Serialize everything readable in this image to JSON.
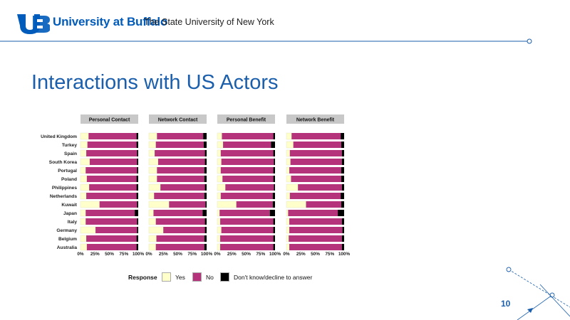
{
  "header": {
    "university": "University at Buffalo",
    "subtitle": "The State University of New York",
    "colors": {
      "brand_blue": "#005bbb"
    }
  },
  "slide": {
    "title": "Interactions with US Actors",
    "page_number": "10"
  },
  "legend": {
    "title": "Response",
    "items": [
      {
        "label": "Yes",
        "color": "#ffffcc"
      },
      {
        "label": "No",
        "color": "#b5337a"
      },
      {
        "label": "Don't know/decline to answer",
        "color": "#000000"
      }
    ]
  },
  "chart_data": {
    "type": "bar",
    "orientation": "horizontal-stacked-100",
    "facets": [
      "Personal Contact",
      "Network Contact",
      "Personal Benefit",
      "Network Benefit"
    ],
    "categories": [
      "United Kingdom",
      "Turkey",
      "Spain",
      "South Korea",
      "Portugal",
      "Poland",
      "Philippines",
      "Netherlands",
      "Kuwait",
      "Japan",
      "Italy",
      "Germany",
      "Belgium",
      "Australia"
    ],
    "x_ticks": [
      "0%",
      "25%",
      "50%",
      "75%",
      "100%"
    ],
    "xlim": [
      0,
      100
    ],
    "series_names": [
      "Yes",
      "No",
      "Don't know/decline to answer"
    ],
    "series_colors": [
      "#ffffcc",
      "#b5337a",
      "#000000"
    ],
    "panels": [
      {
        "facet": "Personal Contact",
        "yes": [
          14,
          12,
          10,
          16,
          9,
          11,
          15,
          10,
          33,
          9,
          9,
          26,
          10,
          11
        ],
        "no": [
          83,
          85,
          88,
          82,
          89,
          86,
          82,
          87,
          65,
          85,
          89,
          72,
          87,
          86
        ],
        "dk": [
          3,
          3,
          2,
          2,
          2,
          3,
          3,
          3,
          2,
          6,
          2,
          2,
          3,
          3
        ]
      },
      {
        "facet": "Network Contact",
        "yes": [
          14,
          12,
          10,
          16,
          14,
          14,
          20,
          9,
          35,
          8,
          12,
          25,
          13,
          12
        ],
        "no": [
          80,
          83,
          87,
          81,
          82,
          82,
          77,
          87,
          63,
          85,
          85,
          72,
          83,
          84
        ],
        "dk": [
          6,
          5,
          3,
          3,
          4,
          4,
          3,
          4,
          2,
          7,
          3,
          3,
          4,
          4
        ]
      },
      {
        "facet": "Personal Benefit",
        "yes": [
          8,
          10,
          6,
          7,
          6,
          9,
          14,
          6,
          33,
          4,
          5,
          7,
          5,
          5
        ],
        "no": [
          89,
          83,
          91,
          91,
          91,
          88,
          84,
          90,
          63,
          87,
          92,
          90,
          92,
          92
        ],
        "dk": [
          3,
          7,
          3,
          2,
          3,
          3,
          2,
          4,
          4,
          9,
          3,
          3,
          3,
          3
        ]
      },
      {
        "facet": "Network Benefit",
        "yes": [
          9,
          12,
          6,
          7,
          5,
          8,
          20,
          6,
          34,
          3,
          5,
          5,
          4,
          5
        ],
        "no": [
          85,
          83,
          90,
          89,
          90,
          87,
          76,
          88,
          61,
          86,
          91,
          92,
          92,
          91
        ],
        "dk": [
          6,
          5,
          4,
          4,
          5,
          5,
          4,
          6,
          5,
          11,
          4,
          3,
          4,
          4
        ]
      }
    ]
  }
}
